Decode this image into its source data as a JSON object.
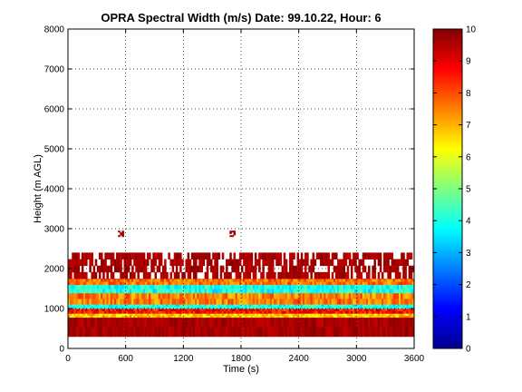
{
  "chart_data": {
    "type": "heatmap",
    "title": "OPRA Spectral Width (m/s)  Date: 99.10.22, Hour: 6",
    "xlabel": "Time (s)",
    "ylabel": "Height (m AGL)",
    "xlim": [
      0,
      3600
    ],
    "ylim": [
      0,
      8000
    ],
    "x_ticks": [
      0,
      600,
      1200,
      1800,
      2400,
      3000,
      3600
    ],
    "y_ticks": [
      0,
      1000,
      2000,
      3000,
      4000,
      5000,
      6000,
      7000,
      8000
    ],
    "grid": true,
    "colorbar": {
      "range": [
        0,
        10
      ],
      "ticks": [
        0,
        1,
        2,
        3,
        4,
        5,
        6,
        7,
        8,
        9,
        10
      ],
      "colormap": "jet"
    },
    "bands": [
      {
        "y0": 300,
        "y1": 780,
        "value": 9.6,
        "note": "solid dark red layer"
      },
      {
        "y0": 780,
        "y1": 880,
        "value": 6.8,
        "note": "yellow/orange layer"
      },
      {
        "y0": 880,
        "y1": 1000,
        "value": 8.7,
        "note": "red layer"
      },
      {
        "y0": 1000,
        "y1": 1110,
        "value": 4.0,
        "note": "cyan layer"
      },
      {
        "y0": 1110,
        "y1": 1390,
        "value": 7.5,
        "note": "orange/yellow/red mixed"
      },
      {
        "y0": 1390,
        "y1": 1600,
        "value": 4.0,
        "note": "cyan layer"
      },
      {
        "y0": 1600,
        "y1": 1750,
        "value": 7.6,
        "note": "orange/red broken"
      },
      {
        "y0": 1750,
        "y1": 2400,
        "value": 9.6,
        "note": "patchy dark red, gaps"
      },
      {
        "y0": 2800,
        "y1": 2950,
        "value": 9.6,
        "note": "isolated echoes near t=550 and t=1700"
      }
    ]
  }
}
